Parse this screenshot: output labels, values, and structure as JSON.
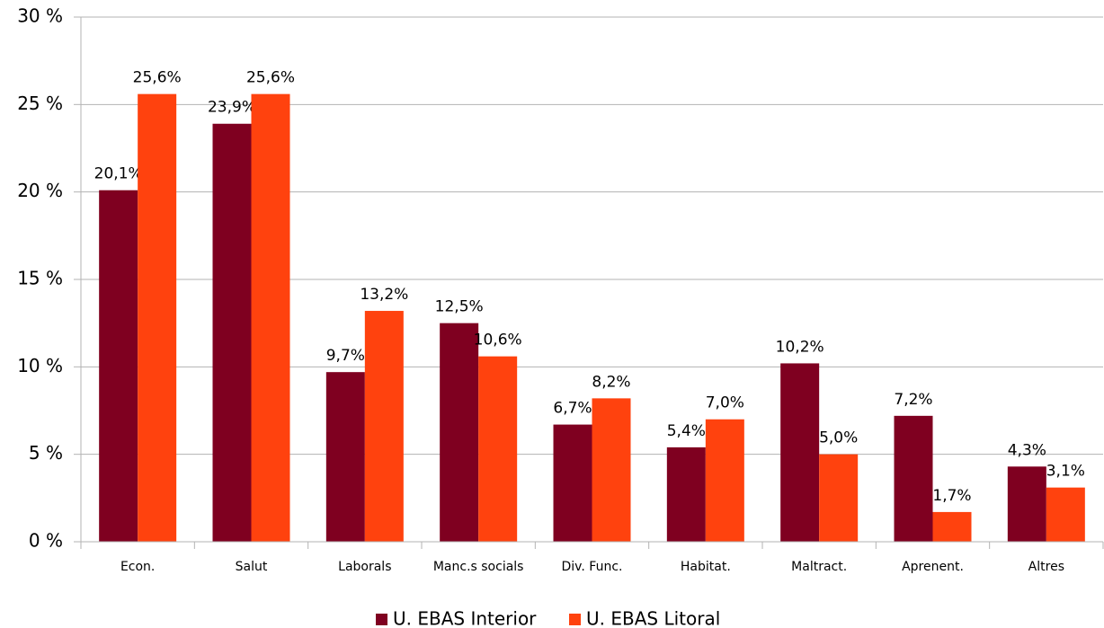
{
  "chart_data": {
    "type": "bar",
    "categories": [
      "Econ.",
      "Salut",
      "Laborals",
      "Manc.s socials",
      "Div. Func.",
      "Habitat.",
      "Maltract.",
      "Aprenent.",
      "Altres"
    ],
    "series": [
      {
        "name": "U. EBAS Interior",
        "color": "#7f0020",
        "values": [
          20.1,
          23.9,
          9.7,
          12.5,
          6.7,
          5.4,
          10.2,
          7.2,
          4.3
        ],
        "value_labels": [
          "20,1%",
          "23,9%",
          "9,7%",
          "12,5%",
          "6,7%",
          "5,4%",
          "10,2%",
          "7,2%",
          "4,3%"
        ]
      },
      {
        "name": "U. EBAS Litoral",
        "color": "#ff420e",
        "values": [
          25.6,
          25.6,
          13.2,
          10.6,
          8.2,
          7.0,
          5.0,
          1.7,
          3.1
        ],
        "value_labels": [
          "25,6%",
          "25,6%",
          "13,2%",
          "10,6%",
          "8,2%",
          "7,0%",
          "5,0%",
          "1,7%",
          "3,1%"
        ]
      }
    ],
    "ylim": [
      0,
      30
    ],
    "yticks": [
      {
        "value": 0,
        "label": "0 %"
      },
      {
        "value": 5,
        "label": "5 %"
      },
      {
        "value": 10,
        "label": "10 %"
      },
      {
        "value": 15,
        "label": "15 %"
      },
      {
        "value": 20,
        "label": "20 %"
      },
      {
        "value": 25,
        "label": "25 %"
      },
      {
        "value": 30,
        "label": "30 %"
      }
    ],
    "grid": true,
    "legend": "bottom"
  }
}
